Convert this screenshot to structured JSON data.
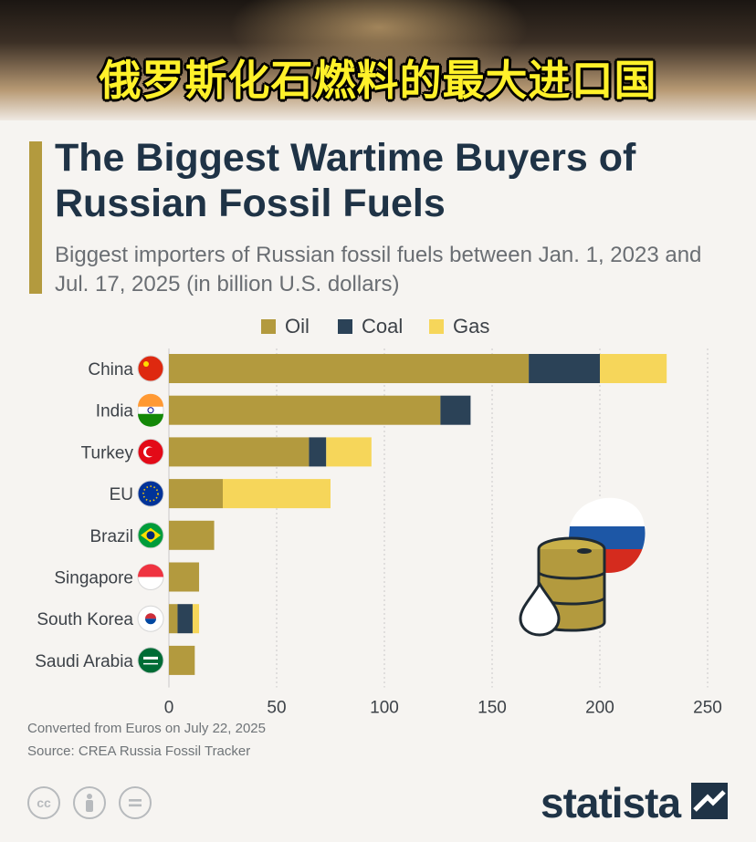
{
  "banner": {
    "text": "俄罗斯化石燃料的最大进口国"
  },
  "header": {
    "title": "The Biggest Wartime Buyers of Russian Fossil Fuels",
    "subtitle": "Biggest importers of Russian fossil fuels between Jan. 1, 2023 and Jul. 17, 2025 (in billion U.S. dollars)"
  },
  "colors": {
    "oil": "#b39a3e",
    "coal": "#2b4257",
    "gas": "#f6d65a",
    "title": "#1f3346"
  },
  "legend": {
    "oil": "Oil",
    "coal": "Coal",
    "gas": "Gas"
  },
  "chart_data": {
    "type": "bar",
    "orientation": "horizontal",
    "stacked": true,
    "categories": [
      "China",
      "India",
      "Turkey",
      "EU",
      "Brazil",
      "Singapore",
      "South Korea",
      "Saudi Arabia"
    ],
    "flags": [
      "china-flag",
      "india-flag",
      "turkey-flag",
      "eu-flag",
      "brazil-flag",
      "singapore-flag",
      "south-korea-flag",
      "saudi-arabia-flag"
    ],
    "series": [
      {
        "name": "Oil",
        "values": [
          167,
          126,
          65,
          25,
          21,
          14,
          4,
          12
        ]
      },
      {
        "name": "Coal",
        "values": [
          33,
          14,
          8,
          0,
          0,
          0,
          7,
          0
        ]
      },
      {
        "name": "Gas",
        "values": [
          31,
          0,
          21,
          50,
          0,
          0,
          3,
          0
        ]
      }
    ],
    "xlim": [
      0,
      250
    ],
    "xticks": [
      0,
      50,
      100,
      150,
      200,
      250
    ],
    "grid": true,
    "legend_position": "top-center"
  },
  "footer": {
    "note": "Converted from Euros on July 22, 2025",
    "source": "Source: CREA Russia Fossil Tracker",
    "brand": "statista",
    "license_icons": [
      "cc-icon",
      "attribution-icon",
      "no-derivatives-icon"
    ]
  }
}
